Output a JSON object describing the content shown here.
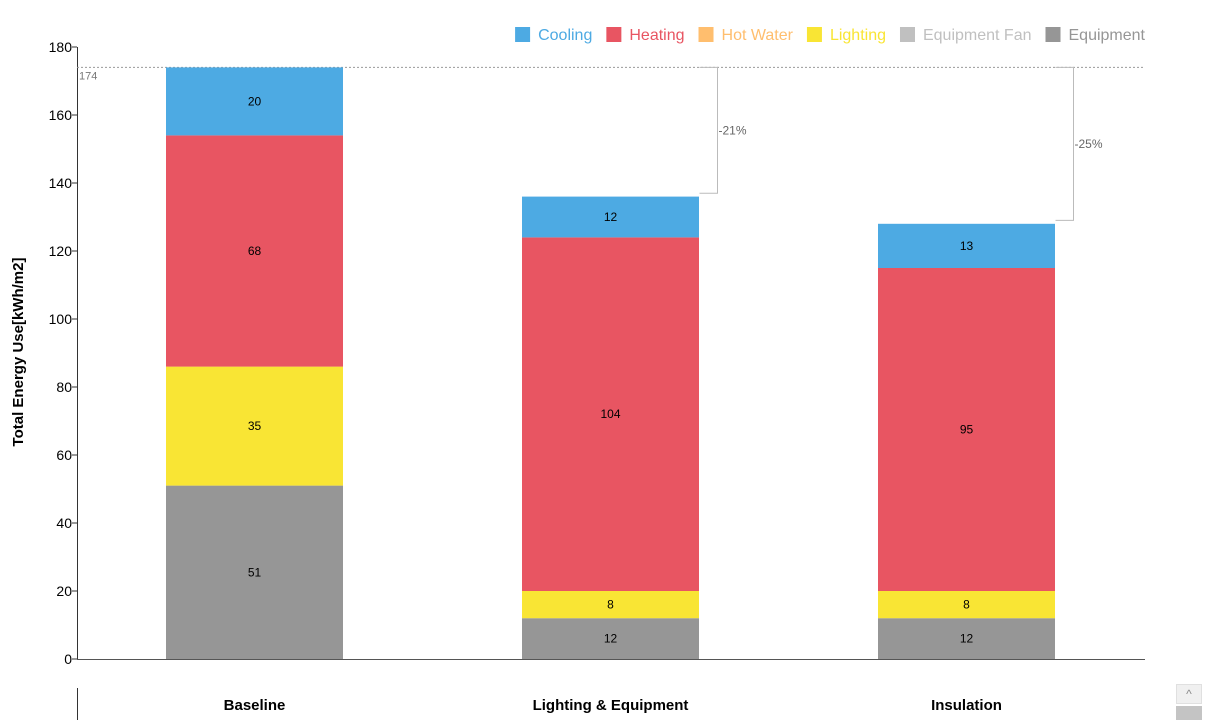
{
  "chart_data": {
    "type": "bar",
    "stacked": true,
    "categories": [
      "Baseline",
      "Lighting & Equipment",
      "Insulation"
    ],
    "ylabel": "Total Energy Use[kWh/m2]",
    "ylim": [
      0,
      180
    ],
    "yticks": [
      0,
      20,
      40,
      60,
      80,
      100,
      120,
      140,
      160,
      180
    ],
    "grid": false,
    "legend_position": "top-right",
    "baseline_total": 174,
    "baseline_label": "174",
    "series": [
      {
        "name": "Cooling",
        "color": "#4DAAE3",
        "values": [
          20,
          12,
          13
        ]
      },
      {
        "name": "Heating",
        "color": "#E85562",
        "values": [
          68,
          104,
          95
        ]
      },
      {
        "name": "Hot Water",
        "color": "#FFBE6E",
        "values": [
          0,
          0,
          0
        ]
      },
      {
        "name": "Lighting",
        "color": "#F9E534",
        "values": [
          35,
          8,
          8
        ]
      },
      {
        "name": "Equipment Fan",
        "color": "#C0C0C0",
        "values": [
          0,
          0,
          0
        ]
      },
      {
        "name": "Equipment",
        "color": "#969696",
        "values": [
          51,
          12,
          12
        ]
      }
    ],
    "stack_order_bottom_to_top": [
      "Equipment",
      "Equipment Fan",
      "Lighting",
      "Hot Water",
      "Heating",
      "Cooling"
    ],
    "bar_labels": [
      {
        "category": "Baseline",
        "series": "Cooling",
        "label": "20"
      },
      {
        "category": "Baseline",
        "series": "Heating",
        "label": "68"
      },
      {
        "category": "Baseline",
        "series": "Lighting",
        "label": "35"
      },
      {
        "category": "Baseline",
        "series": "Equipment",
        "label": "51"
      },
      {
        "category": "Lighting & Equipment",
        "series": "Cooling",
        "label": "12"
      },
      {
        "category": "Lighting & Equipment",
        "series": "Heating",
        "label": "104"
      },
      {
        "category": "Lighting & Equipment",
        "series": "Lighting",
        "label": "8"
      },
      {
        "category": "Lighting & Equipment",
        "series": "Equipment",
        "label": "12"
      },
      {
        "category": "Insulation",
        "series": "Cooling",
        "label": "13"
      },
      {
        "category": "Insulation",
        "series": "Heating",
        "label": "95"
      },
      {
        "category": "Insulation",
        "series": "Lighting",
        "label": "8"
      },
      {
        "category": "Insulation",
        "series": "Equipment",
        "label": "12"
      }
    ],
    "totals": [
      174,
      137,
      129
    ],
    "annotations": [
      {
        "category": "Lighting & Equipment",
        "text": "-21%"
      },
      {
        "category": "Insulation",
        "text": "-25%"
      }
    ]
  },
  "ui": {
    "scroll_up_glyph": "^"
  }
}
